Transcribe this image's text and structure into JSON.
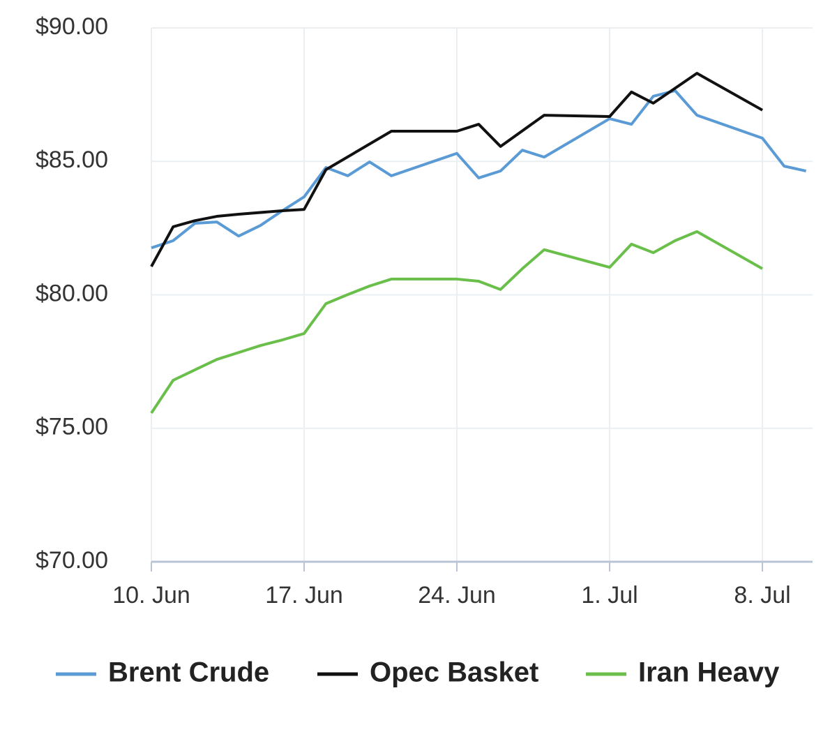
{
  "chart_data": {
    "type": "line",
    "xlim": [
      10,
      40.3
    ],
    "ylim": [
      70,
      90
    ],
    "xticks": [
      {
        "value": 10,
        "label": "10. Jun"
      },
      {
        "value": 17,
        "label": "17. Jun"
      },
      {
        "value": 24,
        "label": "24. Jun"
      },
      {
        "value": 31,
        "label": "1. Jul"
      },
      {
        "value": 38,
        "label": "8. Jul"
      }
    ],
    "yticks": [
      {
        "value": 70,
        "label": "$70.00"
      },
      {
        "value": 75,
        "label": "$75.00"
      },
      {
        "value": 80,
        "label": "$80.00"
      },
      {
        "value": 85,
        "label": "$85.00"
      },
      {
        "value": 90,
        "label": "$90.00"
      }
    ],
    "grid": true,
    "legend": "bottom",
    "series": [
      {
        "name": "Brent Crude",
        "color": "#5b9bd5",
        "x": [
          10,
          11,
          12,
          13,
          14,
          15,
          16,
          17,
          18,
          19,
          20,
          21,
          24,
          25,
          26,
          27,
          28,
          31,
          32,
          33,
          34,
          35,
          38,
          39,
          40
        ],
        "values": [
          81.76,
          82.03,
          82.68,
          82.73,
          82.2,
          82.6,
          83.15,
          83.67,
          84.77,
          84.46,
          84.98,
          84.46,
          85.3,
          84.38,
          84.64,
          85.42,
          85.16,
          86.6,
          86.39,
          87.44,
          87.65,
          86.73,
          85.87,
          84.82,
          84.64
        ]
      },
      {
        "name": "Opec Basket",
        "color": "#111111",
        "x": [
          10,
          11,
          12,
          13,
          14,
          16,
          17,
          18,
          21,
          24,
          25,
          26,
          28,
          31,
          32,
          33,
          35,
          38
        ],
        "values": [
          81.06,
          82.55,
          82.78,
          82.94,
          83.02,
          83.15,
          83.2,
          84.69,
          86.13,
          86.13,
          86.39,
          85.56,
          86.73,
          86.68,
          87.6,
          87.18,
          88.3,
          86.92
        ]
      },
      {
        "name": "Iran Heavy",
        "color": "#6abf4b",
        "x": [
          10,
          11,
          12,
          13,
          14,
          15,
          16,
          17,
          18,
          19,
          20,
          21,
          24,
          25,
          26,
          27,
          28,
          31,
          32,
          33,
          34,
          35,
          38
        ],
        "values": [
          75.57,
          76.8,
          77.19,
          77.58,
          77.84,
          78.1,
          78.31,
          78.55,
          79.67,
          80.01,
          80.33,
          80.59,
          80.59,
          80.51,
          80.2,
          80.98,
          81.69,
          81.03,
          81.9,
          81.58,
          82.03,
          82.37,
          80.98
        ]
      }
    ]
  }
}
